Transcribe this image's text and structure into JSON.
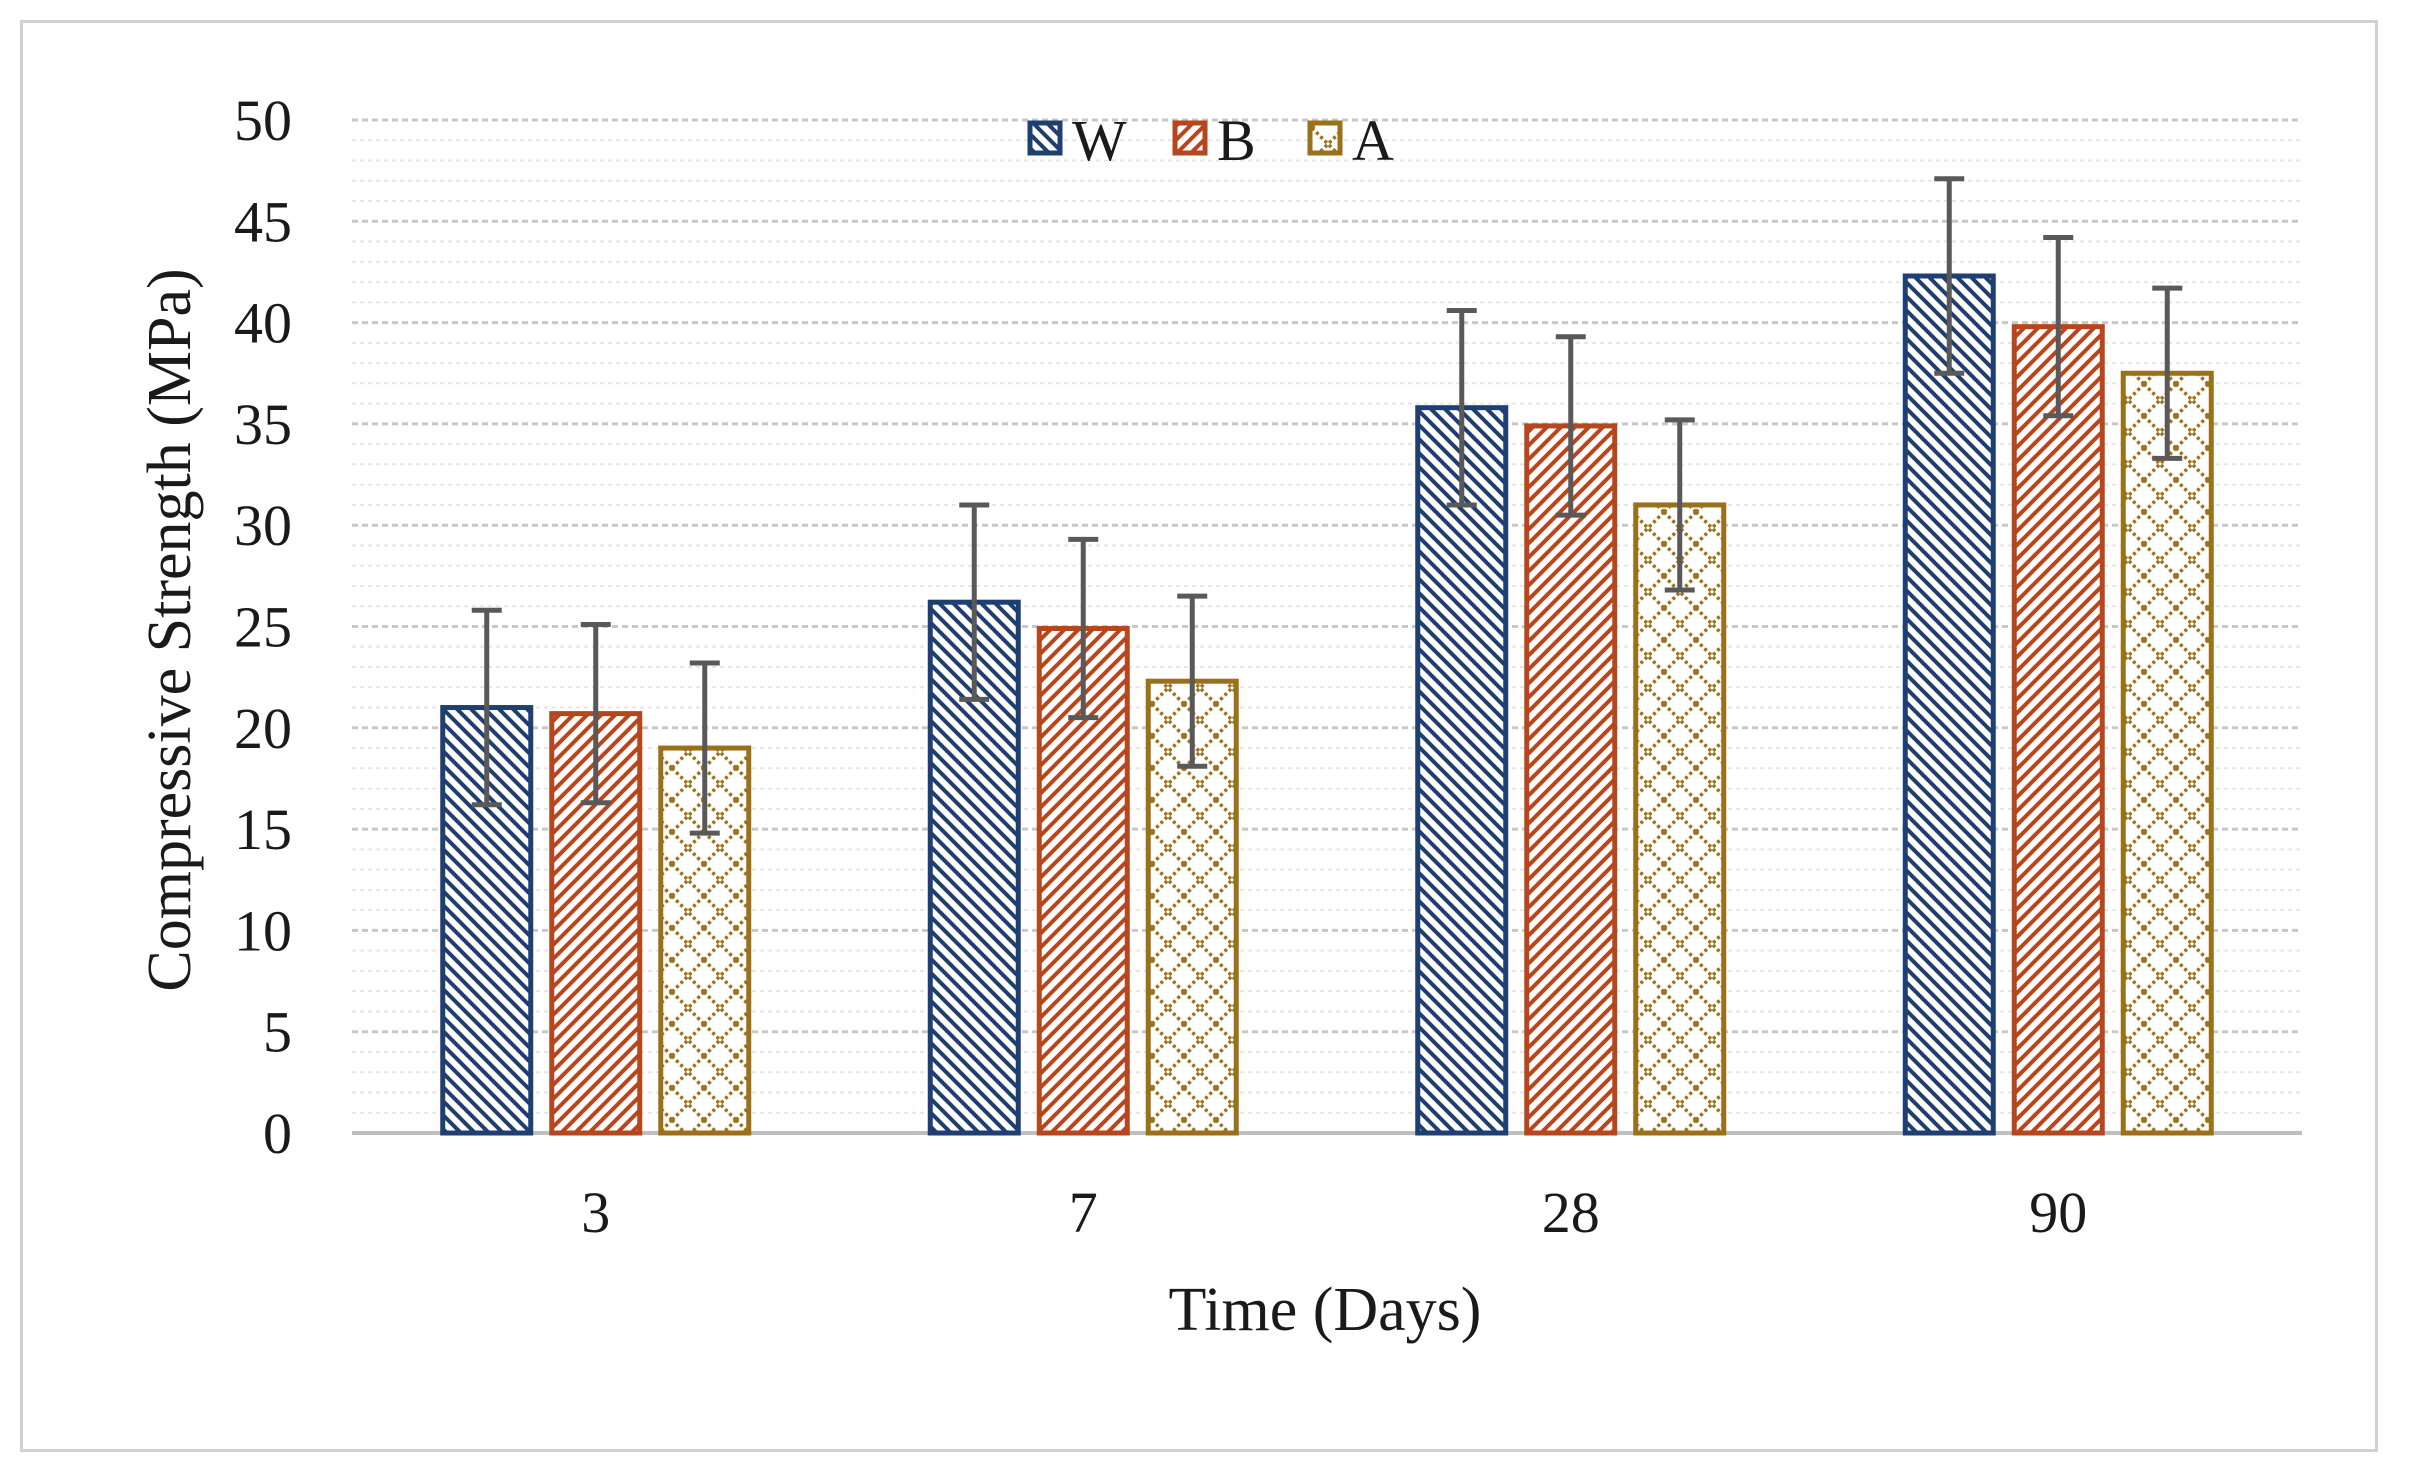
{
  "chart_data": {
    "type": "bar",
    "title": "",
    "xlabel": "Time (Days)",
    "ylabel": "Compressive Strength (MPa)",
    "categories": [
      "3",
      "7",
      "28",
      "90"
    ],
    "ylim": [
      0,
      50
    ],
    "yticks": [
      0,
      5,
      10,
      15,
      20,
      25,
      30,
      35,
      40,
      45,
      50
    ],
    "grid": true,
    "legend_position": "top-center",
    "series": [
      {
        "name": "W",
        "color": "#1f3f73",
        "pattern": "diagonal-down",
        "values": [
          21.0,
          26.2,
          35.8,
          42.3
        ],
        "errors": [
          4.8,
          4.8,
          4.8,
          4.8
        ]
      },
      {
        "name": "B",
        "color": "#b5461e",
        "pattern": "diagonal-up",
        "values": [
          20.7,
          24.9,
          34.9,
          39.8
        ],
        "errors": [
          4.4,
          4.4,
          4.4,
          4.4
        ]
      },
      {
        "name": "A",
        "color": "#9a7018",
        "pattern": "crosshatch",
        "values": [
          19.0,
          22.3,
          31.0,
          37.5
        ],
        "errors": [
          4.2,
          4.2,
          4.2,
          4.2
        ]
      }
    ],
    "error_bar_color": "#595959"
  }
}
